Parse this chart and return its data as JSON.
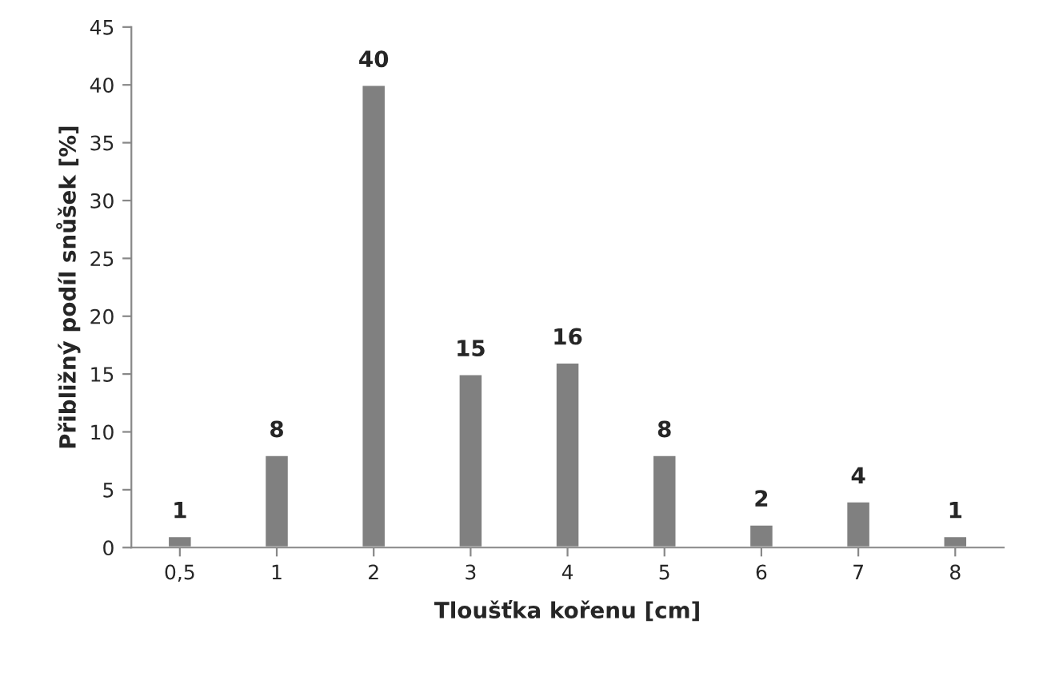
{
  "chart_data": {
    "type": "bar",
    "xlabel": "Tloušťka kořenu [cm]",
    "ylabel": "Přibližný podíl snůšek [%]",
    "categories": [
      "0,5",
      "1",
      "2",
      "3",
      "4",
      "5",
      "6",
      "7",
      "8"
    ],
    "values": [
      1,
      8,
      40,
      15,
      16,
      8,
      2,
      4,
      1
    ],
    "color": "#808080",
    "ylim": [
      0,
      45
    ],
    "yticks": [
      0,
      5,
      10,
      15,
      20,
      25,
      30,
      35,
      40,
      45
    ],
    "grid": false,
    "data_labels": true
  }
}
